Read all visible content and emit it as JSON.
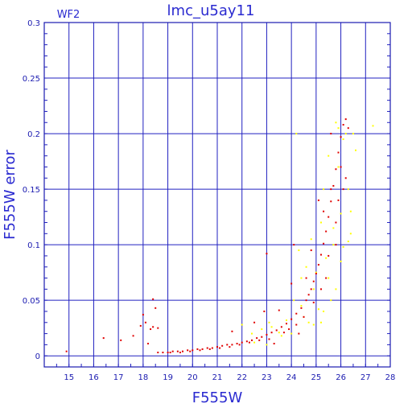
{
  "chart_data": {
    "type": "scatter",
    "title": "lmc_u5ay11",
    "panel_label": "WF2",
    "xlabel": "F555W",
    "ylabel": "F555W error",
    "xlim": [
      14,
      28
    ],
    "ylim": [
      -0.01,
      0.3
    ],
    "xticks": [
      15,
      16,
      17,
      18,
      19,
      20,
      21,
      22,
      23,
      24,
      25,
      26,
      27,
      28
    ],
    "yticks": [
      0,
      0.05,
      0.1,
      0.15,
      0.2,
      0.25,
      0.3
    ],
    "ytick_labels": [
      "0",
      "0.05",
      "0.1",
      "0.15",
      "0.2",
      "0.25",
      "0.3"
    ],
    "grid": true,
    "colors": {
      "frame": "#1a1ab0",
      "grid": "#2020c0",
      "text": "#2a2ad0",
      "series_a": "#e00000",
      "series_b": "#ffff00"
    },
    "series": [
      {
        "color": "#e00000",
        "points": [
          [
            14.9,
            0.004
          ],
          [
            16.4,
            0.016
          ],
          [
            17.1,
            0.014
          ],
          [
            17.6,
            0.018
          ],
          [
            17.9,
            0.027
          ],
          [
            18.0,
            0.037
          ],
          [
            18.1,
            0.03
          ],
          [
            18.3,
            0.024
          ],
          [
            18.4,
            0.051
          ],
          [
            18.4,
            0.026
          ],
          [
            18.5,
            0.043
          ],
          [
            18.6,
            0.025
          ],
          [
            18.2,
            0.011
          ],
          [
            18.6,
            0.003
          ],
          [
            18.8,
            0.003
          ],
          [
            19.0,
            0.003
          ],
          [
            19.2,
            0.004
          ],
          [
            19.4,
            0.004
          ],
          [
            19.6,
            0.004
          ],
          [
            19.8,
            0.005
          ],
          [
            20.0,
            0.005
          ],
          [
            20.2,
            0.006
          ],
          [
            20.4,
            0.006
          ],
          [
            20.6,
            0.007
          ],
          [
            20.8,
            0.007
          ],
          [
            21.0,
            0.008
          ],
          [
            21.2,
            0.009
          ],
          [
            21.4,
            0.01
          ],
          [
            21.6,
            0.01
          ],
          [
            21.8,
            0.011
          ],
          [
            22.0,
            0.012
          ],
          [
            22.2,
            0.013
          ],
          [
            22.4,
            0.014
          ],
          [
            22.6,
            0.016
          ],
          [
            22.8,
            0.017
          ],
          [
            23.0,
            0.019
          ],
          [
            23.2,
            0.021
          ],
          [
            23.4,
            0.023
          ],
          [
            23.6,
            0.026
          ],
          [
            23.8,
            0.029
          ],
          [
            24.0,
            0.033
          ],
          [
            24.2,
            0.038
          ],
          [
            24.4,
            0.043
          ],
          [
            24.6,
            0.05
          ],
          [
            24.7,
            0.055
          ],
          [
            24.8,
            0.06
          ],
          [
            24.9,
            0.067
          ],
          [
            25.0,
            0.074
          ],
          [
            25.1,
            0.082
          ],
          [
            25.2,
            0.091
          ],
          [
            25.3,
            0.101
          ],
          [
            25.4,
            0.112
          ],
          [
            25.5,
            0.125
          ],
          [
            25.6,
            0.139
          ],
          [
            25.7,
            0.153
          ],
          [
            25.8,
            0.168
          ],
          [
            25.9,
            0.183
          ],
          [
            26.0,
            0.197
          ],
          [
            26.1,
            0.208
          ],
          [
            26.2,
            0.213
          ],
          [
            23.0,
            0.092
          ],
          [
            23.5,
            0.041
          ],
          [
            24.0,
            0.065
          ],
          [
            24.1,
            0.1
          ],
          [
            24.8,
            0.095
          ],
          [
            25.1,
            0.14
          ],
          [
            25.3,
            0.13
          ],
          [
            25.4,
            0.07
          ],
          [
            25.6,
            0.15
          ],
          [
            25.8,
            0.12
          ],
          [
            26.0,
            0.17
          ],
          [
            26.2,
            0.16
          ],
          [
            22.5,
            0.03
          ],
          [
            21.6,
            0.022
          ],
          [
            22.9,
            0.04
          ],
          [
            23.3,
            0.011
          ],
          [
            24.3,
            0.02
          ],
          [
            24.6,
            0.07
          ],
          [
            25.6,
            0.2
          ],
          [
            26.3,
            0.205
          ],
          [
            26.1,
            0.15
          ],
          [
            25.9,
            0.14
          ],
          [
            25.8,
            0.1
          ],
          [
            25.5,
            0.09
          ],
          [
            25.2,
            0.06
          ],
          [
            24.9,
            0.048
          ],
          [
            24.5,
            0.035
          ],
          [
            24.2,
            0.028
          ],
          [
            23.9,
            0.024
          ],
          [
            23.7,
            0.021
          ],
          [
            23.1,
            0.015
          ],
          [
            22.7,
            0.014
          ],
          [
            22.3,
            0.012
          ],
          [
            21.9,
            0.01
          ],
          [
            21.5,
            0.008
          ],
          [
            21.1,
            0.007
          ],
          [
            20.7,
            0.006
          ],
          [
            20.3,
            0.005
          ],
          [
            19.9,
            0.004
          ],
          [
            19.5,
            0.003
          ],
          [
            19.1,
            0.003
          ]
        ]
      },
      {
        "color": "#ffff00",
        "points": [
          [
            22.0,
            0.028
          ],
          [
            22.4,
            0.02
          ],
          [
            22.8,
            0.024
          ],
          [
            23.0,
            0.01
          ],
          [
            23.2,
            0.026
          ],
          [
            23.6,
            0.018
          ],
          [
            23.8,
            0.032
          ],
          [
            24.0,
            0.02
          ],
          [
            24.2,
            0.2
          ],
          [
            24.3,
            0.095
          ],
          [
            24.4,
            0.045
          ],
          [
            24.5,
            0.035
          ],
          [
            24.6,
            0.08
          ],
          [
            24.7,
            0.03
          ],
          [
            24.8,
            0.105
          ],
          [
            24.9,
            0.028
          ],
          [
            25.0,
            0.075
          ],
          [
            25.1,
            0.042
          ],
          [
            25.2,
            0.12
          ],
          [
            25.3,
            0.04
          ],
          [
            25.4,
            0.088
          ],
          [
            25.5,
            0.18
          ],
          [
            25.6,
            0.05
          ],
          [
            25.7,
            0.115
          ],
          [
            25.8,
            0.21
          ],
          [
            25.9,
            0.17
          ],
          [
            26.0,
            0.128
          ],
          [
            26.1,
            0.195
          ],
          [
            26.2,
            0.2
          ],
          [
            26.3,
            0.103
          ],
          [
            26.4,
            0.13
          ],
          [
            26.5,
            0.2
          ],
          [
            26.6,
            0.185
          ],
          [
            27.3,
            0.207
          ],
          [
            25.8,
            0.06
          ],
          [
            26.0,
            0.085
          ],
          [
            25.5,
            0.07
          ],
          [
            25.2,
            0.03
          ],
          [
            24.9,
            0.06
          ],
          [
            24.4,
            0.07
          ],
          [
            23.5,
            0.021
          ],
          [
            23.1,
            0.03
          ],
          [
            22.5,
            0.012
          ],
          [
            24.1,
            0.05
          ],
          [
            25.3,
            0.15
          ],
          [
            25.9,
            0.205
          ],
          [
            26.3,
            0.15
          ],
          [
            26.4,
            0.11
          ],
          [
            26.1,
            0.098
          ],
          [
            25.7,
            0.1
          ]
        ]
      }
    ]
  }
}
